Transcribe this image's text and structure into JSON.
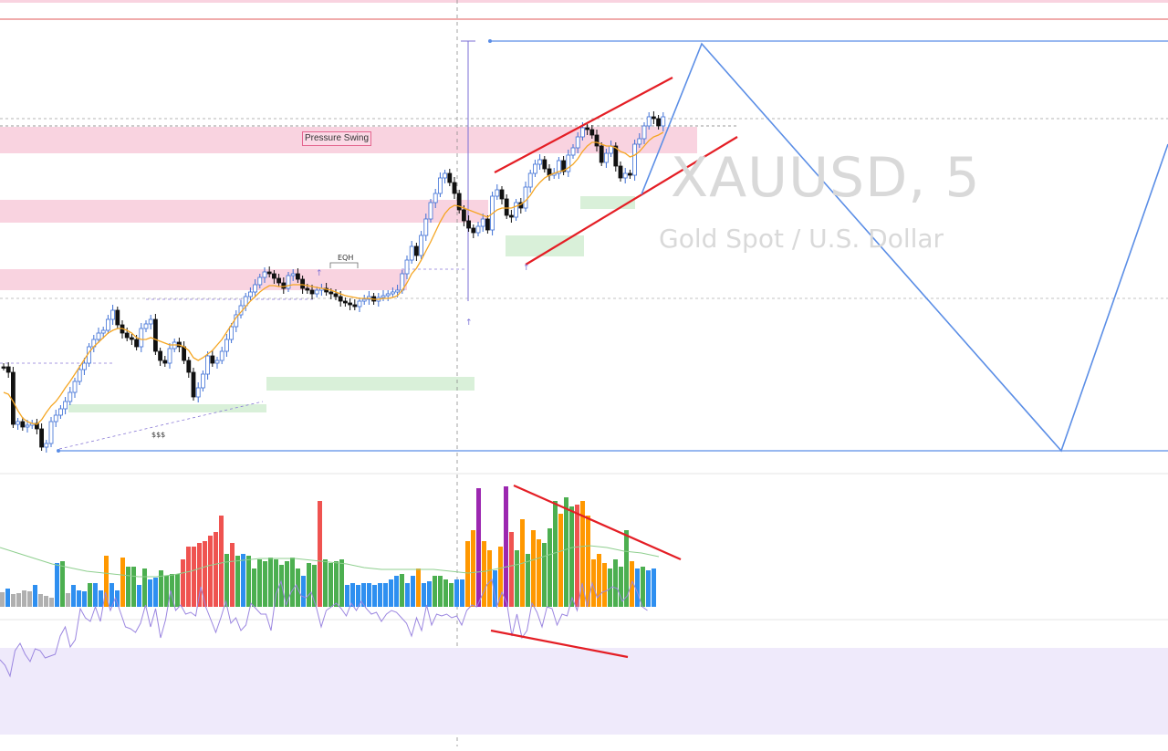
{
  "watermark": {
    "symbol": "XAUUSD, 5",
    "description": "Gold Spot / U.S. Dollar"
  },
  "annotations": {
    "zone_label": "Pressure Swing",
    "eqh_label": "EQH",
    "liquidity_label": "$$$"
  },
  "colors": {
    "candle_up": "#3d6fd6",
    "candle_down": "#111111",
    "ma": "#f5a623",
    "supply_zone": "#f9d3e0",
    "demand_zone": "#d9f0d9",
    "trendline": "#e41e25",
    "projection": "#5b8ee6",
    "rsi_line": "#9b86e0",
    "rsi_band": "#efeafb",
    "vol_gray": "#b0b0b0",
    "vol_blue": "#2e8ff0",
    "vol_green": "#4caf50",
    "vol_orange": "#ff9800",
    "vol_red": "#ef5350",
    "vol_purple": "#9c27b0"
  },
  "chart_data": {
    "type": "line",
    "symbol": "XAUUSD",
    "timeframe": "5",
    "panes": [
      "price",
      "volume",
      "rsi"
    ],
    "price_close_series": [
      402,
      408,
      465,
      462,
      468,
      466,
      464,
      470,
      490,
      486,
      462,
      455,
      448,
      440,
      430,
      418,
      405,
      398,
      380,
      372,
      365,
      362,
      350,
      340,
      356,
      365,
      370,
      372,
      380,
      360,
      355,
      350,
      385,
      395,
      398,
      382,
      375,
      380,
      395,
      408,
      435,
      425,
      410,
      390,
      398,
      395,
      385,
      372,
      358,
      345,
      335,
      325,
      320,
      312,
      304,
      298,
      300,
      305,
      310,
      316,
      302,
      300,
      306,
      316,
      318,
      322,
      318,
      316,
      320,
      322,
      325,
      330,
      332,
      334,
      336,
      330,
      328,
      325,
      330,
      326,
      324,
      322,
      320,
      318,
      300,
      285,
      270,
      280,
      258,
      240,
      222,
      212,
      195,
      190,
      200,
      212,
      230,
      242,
      250,
      255,
      248,
      240,
      252,
      215,
      208,
      218,
      236,
      238,
      222,
      228,
      205,
      190,
      180,
      175,
      185,
      192,
      190,
      176,
      188,
      170,
      162,
      150,
      140,
      142,
      148,
      160,
      178,
      168,
      160,
      182,
      195,
      190,
      192,
      158,
      152,
      138,
      128,
      130,
      138,
      128
    ],
    "ma_series": [
      430,
      432,
      440,
      450,
      458,
      462,
      464,
      465,
      460,
      452,
      445,
      440,
      433,
      425,
      418,
      410,
      402,
      394,
      386,
      380,
      375,
      370,
      365,
      362,
      360,
      360,
      362,
      365,
      370,
      372,
      372,
      370,
      372,
      374,
      376,
      378,
      378,
      378,
      380,
      384,
      392,
      395,
      392,
      388,
      384,
      378,
      372,
      364,
      356,
      348,
      342,
      336,
      330,
      325,
      320,
      316,
      313,
      313,
      314,
      314,
      313,
      312,
      312,
      312,
      313,
      314,
      315,
      316,
      317,
      318,
      320,
      322,
      324,
      325,
      326,
      327,
      327,
      327,
      328,
      328,
      327,
      327,
      326,
      324,
      318,
      310,
      300,
      294,
      285,
      275,
      265,
      254,
      243,
      234,
      228,
      225,
      226,
      228,
      230,
      232,
      234,
      236,
      238,
      234,
      230,
      228,
      228,
      228,
      226,
      224,
      220,
      214,
      206,
      200,
      195,
      192,
      190,
      188,
      187,
      184,
      180,
      174,
      166,
      160,
      156,
      156,
      158,
      160,
      160,
      162,
      166,
      168,
      172,
      170,
      166,
      160,
      154,
      150,
      148,
      145
    ],
    "levels": {
      "projection_top": 45,
      "projection_bottom": 494,
      "pressure_swing_zone": [
        139,
        168
      ]
    },
    "volume_colors": [
      "gray",
      "blue",
      "gray",
      "gray",
      "gray",
      "gray",
      "blue",
      "gray",
      "gray",
      "gray",
      "blue",
      "green",
      "gray",
      "blue",
      "blue",
      "blue",
      "green",
      "blue",
      "blue",
      "orange",
      "blue",
      "blue",
      "orange",
      "green",
      "green",
      "blue",
      "green",
      "blue",
      "blue",
      "green",
      "green",
      "green",
      "green",
      "red",
      "red",
      "red",
      "red",
      "red",
      "red",
      "red",
      "red",
      "green",
      "red",
      "green",
      "blue",
      "green",
      "green",
      "green",
      "green",
      "green",
      "green",
      "green",
      "green",
      "green",
      "green",
      "blue",
      "green",
      "green",
      "red",
      "green",
      "green",
      "green",
      "green",
      "blue",
      "blue",
      "blue",
      "blue",
      "blue",
      "blue",
      "blue",
      "blue",
      "blue",
      "blue",
      "green",
      "blue",
      "blue",
      "orange",
      "blue",
      "blue",
      "green",
      "green",
      "green",
      "green",
      "blue",
      "blue",
      "orange",
      "orange",
      "purple",
      "orange",
      "orange",
      "blue",
      "orange",
      "purple",
      "red",
      "green",
      "orange",
      "green",
      "orange",
      "orange",
      "green",
      "green",
      "green",
      "orange",
      "green",
      "green",
      "red",
      "orange",
      "orange",
      "orange",
      "orange",
      "orange",
      "green",
      "green",
      "green",
      "green",
      "orange",
      "blue",
      "green",
      "blue",
      "blue",
      "blue"
    ],
    "volume_values": [
      16,
      20,
      14,
      15,
      18,
      17,
      24,
      14,
      12,
      10,
      48,
      50,
      15,
      24,
      18,
      17,
      26,
      26,
      18,
      56,
      26,
      18,
      54,
      44,
      44,
      24,
      42,
      30,
      32,
      40,
      34,
      36,
      36,
      52,
      66,
      66,
      70,
      72,
      78,
      82,
      100,
      58,
      70,
      56,
      58,
      56,
      42,
      52,
      50,
      54,
      52,
      46,
      50,
      54,
      42,
      34,
      48,
      46,
      116,
      52,
      48,
      50,
      52,
      24,
      26,
      24,
      26,
      26,
      24,
      26,
      26,
      30,
      34,
      36,
      26,
      34,
      42,
      26,
      28,
      34,
      34,
      30,
      26,
      30,
      30,
      72,
      84,
      130,
      72,
      62,
      40,
      66,
      132,
      82,
      62,
      96,
      58,
      84,
      74,
      70,
      86,
      116,
      102,
      120,
      110,
      112,
      116,
      100,
      52,
      58,
      48,
      42,
      52,
      44,
      84,
      50,
      42,
      44,
      40,
      42
    ],
    "rsi_series": [
      92,
      86,
      74,
      102,
      110,
      98,
      90,
      104,
      102,
      94,
      96,
      98,
      118,
      128,
      106,
      114,
      148,
      138,
      134,
      150,
      134,
      166,
      146,
      160,
      144,
      128,
      126,
      122,
      132,
      152,
      128,
      148,
      116,
      136,
      168,
      146,
      152,
      142,
      144,
      140,
      172,
      150,
      136,
      122,
      138,
      156,
      132,
      138,
      124,
      130,
      154,
      148,
      142,
      142,
      124,
      164,
      178,
      152,
      166,
      174,
      162,
      160,
      166,
      150,
      128,
      146,
      150,
      154,
      148,
      140,
      154,
      146,
      156,
      148,
      142,
      144,
      134,
      142,
      146,
      144,
      138,
      132,
      118,
      138,
      124,
      152,
      130,
      142,
      140,
      142,
      138,
      140,
      130,
      146,
      152,
      150,
      162,
      174,
      180,
      150,
      166,
      154,
      118,
      142,
      116,
      124,
      154,
      144,
      128,
      150,
      148,
      130,
      142,
      140,
      160,
      146,
      176,
      150,
      176,
      160,
      166,
      168,
      172,
      170,
      156,
      162,
      178,
      166,
      150,
      146
    ],
    "rsi_band": [
      710,
      805
    ]
  }
}
